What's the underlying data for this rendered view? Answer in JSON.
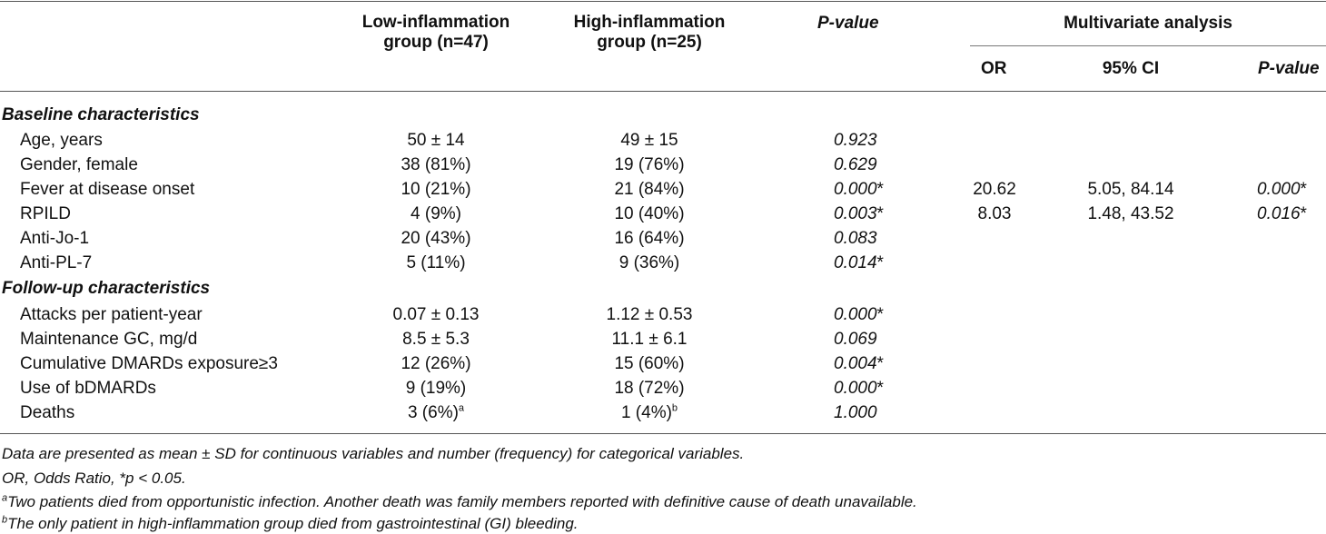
{
  "header": {
    "low_group": [
      "Low-inflammation",
      "group (n=47)"
    ],
    "high_group": [
      "High-inflammation",
      "group (n=25)"
    ],
    "p_value": "P-value",
    "multivariate": "Multivariate analysis",
    "or": "OR",
    "ci": "95% CI",
    "mv_p_value": "P-value"
  },
  "sections": {
    "baseline": "Baseline characteristics",
    "followup": "Follow-up characteristics"
  },
  "rows": [
    {
      "label": "Age, years",
      "low": "50 ± 14",
      "high": "49 ± 15",
      "p": "0.923",
      "or": "",
      "ci": "",
      "mvp": ""
    },
    {
      "label": "Gender, female",
      "low": "38 (81%)",
      "high": "19 (76%)",
      "p": "0.629",
      "or": "",
      "ci": "",
      "mvp": ""
    },
    {
      "label": "Fever at disease onset",
      "low": "10 (21%)",
      "high": "21 (84%)",
      "p": "0.000",
      "p_star": "*",
      "or": "20.62",
      "ci": "5.05, 84.14",
      "mvp": "0.000",
      "mvp_star": "*"
    },
    {
      "label": "RPILD",
      "low": "4 (9%)",
      "high": "10 (40%)",
      "p": "0.003",
      "p_star": "*",
      "or": "8.03",
      "ci": "1.48, 43.52",
      "mvp": "0.016",
      "mvp_star": "*"
    },
    {
      "label": "Anti-Jo-1",
      "low": "20 (43%)",
      "high": "16 (64%)",
      "p": "0.083",
      "or": "",
      "ci": "",
      "mvp": ""
    },
    {
      "label": "Anti-PL-7",
      "low": "5 (11%)",
      "high": "9 (36%)",
      "p": "0.014",
      "p_star": "*",
      "or": "",
      "ci": "",
      "mvp": ""
    },
    {
      "label": "Attacks per patient-year",
      "low": "0.07 ± 0.13",
      "high": "1.12 ± 0.53",
      "p": "0.000",
      "p_star": "*",
      "or": "",
      "ci": "",
      "mvp": ""
    },
    {
      "label": "Maintenance GC, mg/d",
      "low": "8.5 ± 5.3",
      "high": "11.1 ± 6.1",
      "p": "0.069",
      "or": "",
      "ci": "",
      "mvp": ""
    },
    {
      "label": "Cumulative DMARDs exposure≥3",
      "low": "12 (26%)",
      "high": "15 (60%)",
      "p": "0.004",
      "p_star": "*",
      "or": "",
      "ci": "",
      "mvp": ""
    },
    {
      "label": "Use of bDMARDs",
      "low": "9 (19%)",
      "high": "18 (72%)",
      "p": "0.000",
      "p_star": "*",
      "or": "",
      "ci": "",
      "mvp": ""
    },
    {
      "label": "Deaths",
      "low": "3 (6%)",
      "low_sup": "a",
      "high": "1 (4%)",
      "high_sup": "b",
      "p": "1.000",
      "or": "",
      "ci": "",
      "mvp": ""
    }
  ],
  "notes": {
    "line1": "Data are presented as mean ± SD for continuous variables and number (frequency) for categorical variables.",
    "line2": "OR, Odds Ratio, *p < 0.05.",
    "line3_sup": "a",
    "line3": "Two patients died from opportunistic infection. Another death was family members reported with definitive cause of death unavailable.",
    "line4_sup": "b",
    "line4": "The only patient in high-inflammation group died from gastrointestinal (GI) bleeding."
  }
}
